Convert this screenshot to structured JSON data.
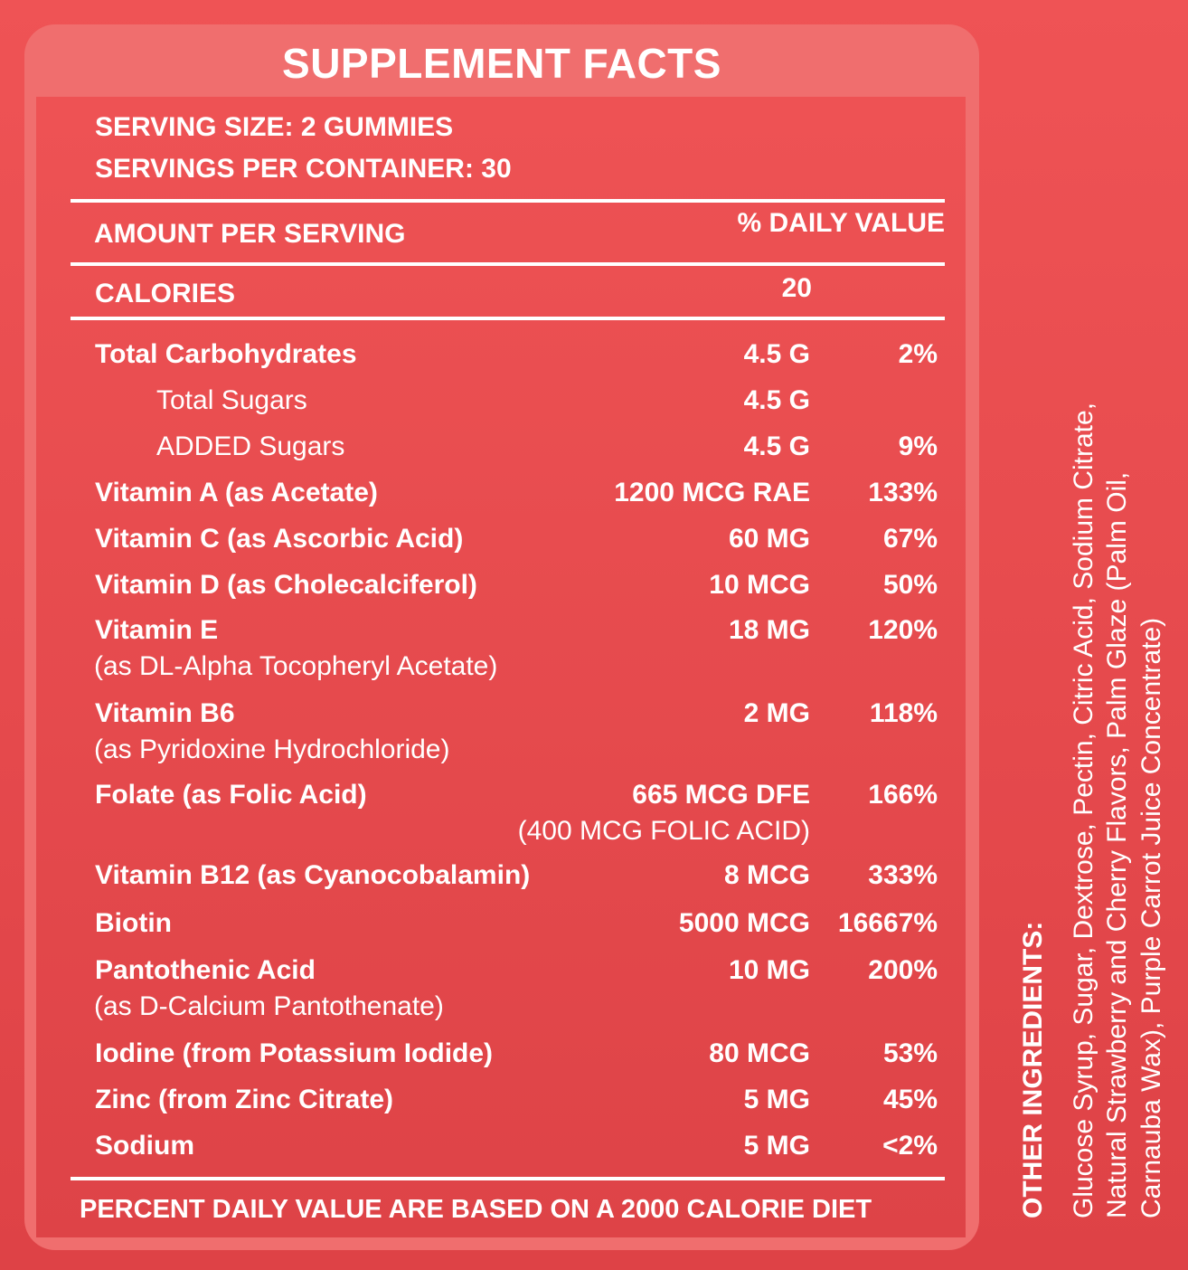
{
  "title": "SUPPLEMENT FACTS",
  "serving_size": "SERVING SIZE: 2 GUMMIES",
  "servings_per_container": "SERVINGS PER CONTAINER: 30",
  "amount_header": "AMOUNT PER SERVING",
  "dv_header": "% DAILY VALUE",
  "calories_label": "CALORIES",
  "calories_value": "20",
  "nutrients": [
    {
      "name": "Total Carbohydrates",
      "amount": "4.5 G",
      "dv": "2%"
    },
    {
      "name": "Total Sugars",
      "amount": "4.5 G",
      "dv": ""
    },
    {
      "name": "ADDED Sugars",
      "amount": "4.5 G",
      "dv": "9%"
    },
    {
      "name": "Vitamin A (as Acetate)",
      "amount": "1200 MCG RAE",
      "dv": "133%"
    },
    {
      "name": "Vitamin C (as Ascorbic Acid)",
      "amount": "60 MG",
      "dv": "67%"
    },
    {
      "name": "Vitamin D (as Cholecalciferol)",
      "amount": "10 MCG",
      "dv": "50%"
    },
    {
      "name": "Vitamin E",
      "sub": "(as DL-Alpha Tocopheryl Acetate)",
      "amount": "18 MG",
      "dv": "120%"
    },
    {
      "name": "Vitamin B6",
      "sub": "(as Pyridoxine Hydrochloride)",
      "amount": "2 MG",
      "dv": "118%"
    },
    {
      "name": "Folate (as Folic Acid)",
      "amount": "665 MCG DFE",
      "amount_sub": "(400 MCG FOLIC ACID)",
      "dv": "166%"
    },
    {
      "name": "Vitamin B12 (as Cyanocobalamin)",
      "amount": "8 MCG",
      "dv": "333%"
    },
    {
      "name": "Biotin",
      "amount": "5000 MCG",
      "dv": "16667%"
    },
    {
      "name": "Pantothenic Acid",
      "sub": "(as D-Calcium Pantothenate)",
      "amount": "10 MG",
      "dv": "200%"
    },
    {
      "name": "Iodine (from Potassium Iodide)",
      "amount": "80 MCG",
      "dv": "53%"
    },
    {
      "name": "Zinc (from Zinc Citrate)",
      "amount": "5 MG",
      "dv": "45%"
    },
    {
      "name": "Sodium",
      "amount": "5 MG",
      "dv": "<2%"
    }
  ],
  "footnote": "PERCENT DAILY VALUE ARE BASED ON A 2000 CALORIE DIET",
  "other_ingredients": {
    "label": "OTHER INGREDIENTS:",
    "lines": [
      "Glucose Syrup, Sugar, Dextrose, Pectin, Citric Acid, Sodium Citrate,",
      "Natural Strawberry and Cherry Flavors, Palm Glaze (Palm Oil,",
      "Carnauba Wax), Purple Carrot Juice Concentrate)"
    ]
  },
  "colors": {
    "background": "#ef5355",
    "panel_header": "#f06e6e",
    "text": "#ffffff"
  }
}
